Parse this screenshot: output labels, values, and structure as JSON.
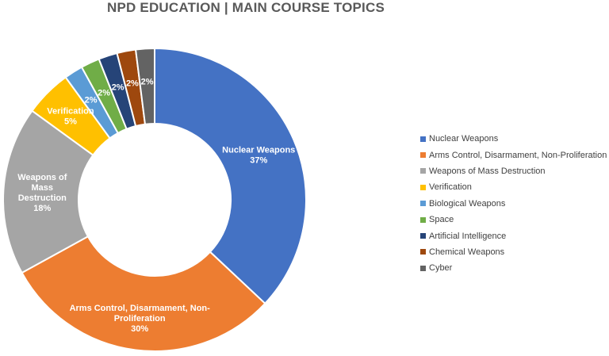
{
  "chart_data": {
    "type": "pie",
    "variant": "donut",
    "title": "NPD EDUCATION | MAIN COURSE TOPICS",
    "legend_position": "right",
    "slices": [
      {
        "label": "Nuclear Weapons",
        "value": 37,
        "display": "37%",
        "color": "#4472C4",
        "chart_label_lines": [
          "Nuclear Weapons",
          "37%"
        ]
      },
      {
        "label": "Arms Control, Disarmament, Non-Proliferation",
        "value": 30,
        "display": "30%",
        "color": "#ED7D31",
        "chart_label_lines": [
          "Arms Control, Disarmament, Non-",
          "Proliferation",
          "30%"
        ]
      },
      {
        "label": "Weapons of Mass Destruction",
        "value": 18,
        "display": "18%",
        "color": "#A5A5A5",
        "chart_label_lines": [
          "Weapons of",
          "Mass",
          "Destruction",
          "18%"
        ]
      },
      {
        "label": "Verification",
        "value": 5,
        "display": "5%",
        "color": "#FFC000",
        "chart_label_lines": [
          "Verification",
          "5%"
        ]
      },
      {
        "label": "Biological Weapons",
        "value": 2,
        "display": "2%",
        "color": "#5B9BD5",
        "chart_label_lines": [
          "2%"
        ]
      },
      {
        "label": "Space",
        "value": 2,
        "display": "2%",
        "color": "#70AD47",
        "chart_label_lines": [
          "2%"
        ]
      },
      {
        "label": "Artificial Intelligence",
        "value": 2,
        "display": "2%",
        "color": "#264478",
        "chart_label_lines": [
          "2%"
        ]
      },
      {
        "label": "Chemical Weapons",
        "value": 2,
        "display": "2%",
        "color": "#9E480E",
        "chart_label_lines": [
          "2%"
        ]
      },
      {
        "label": "Cyber",
        "value": 2,
        "display": "2%",
        "color": "#636363",
        "chart_label_lines": [
          "2%"
        ]
      }
    ]
  }
}
